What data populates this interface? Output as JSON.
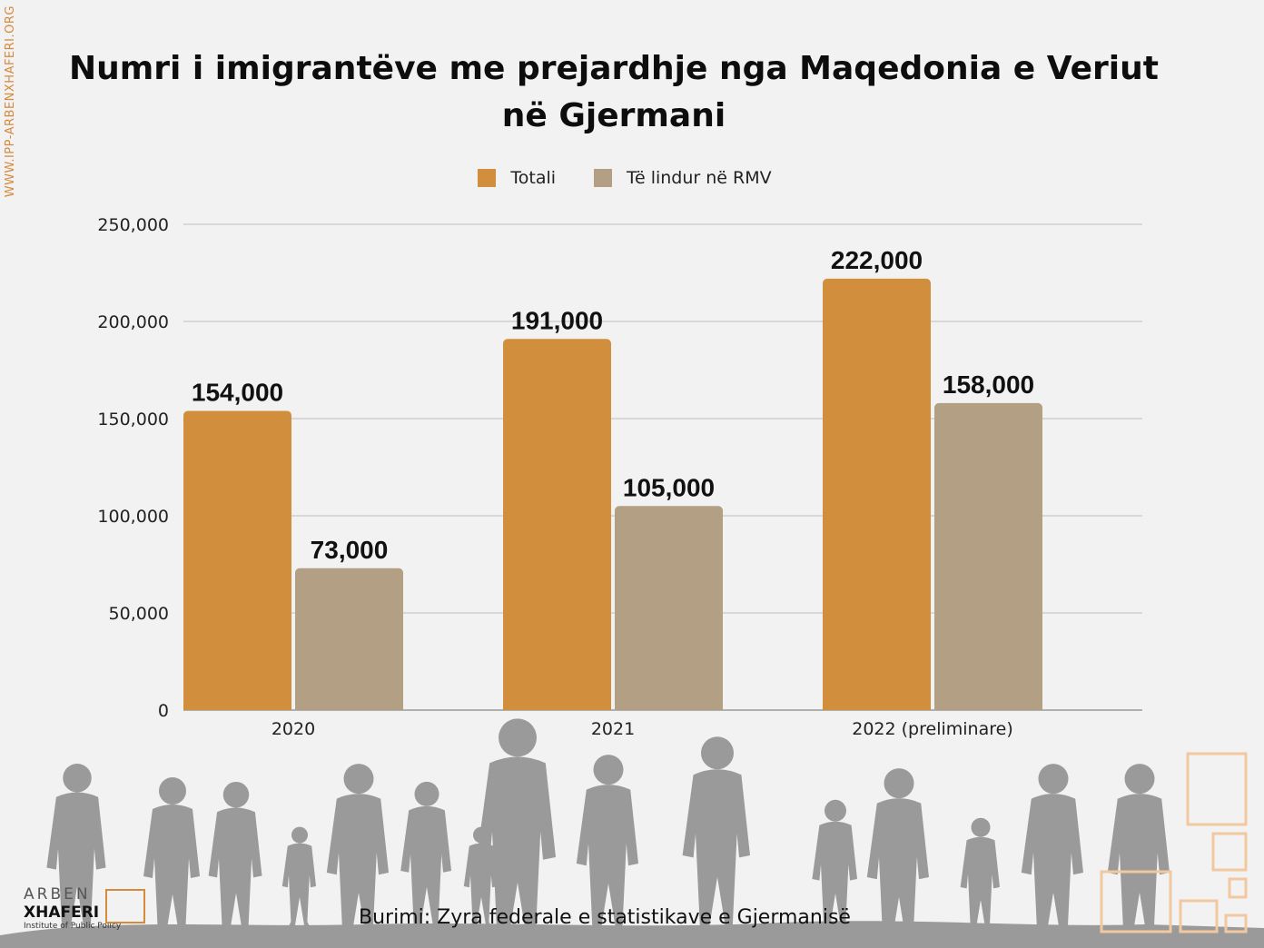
{
  "side_url": "WWW.IPP-ARBENXHAFERI.ORG",
  "source": "Burimi:  Zyra federale e statistikave e Gjermanisë",
  "logo": {
    "line1": "ARBEN",
    "line2": "XHAFERI",
    "line3": "Institute of Public Policy"
  },
  "colors": {
    "totali": "#d18f3e",
    "rmv": "#b29f84",
    "grid": "#c8c8c8"
  },
  "chart_data": {
    "type": "bar",
    "title": "Numri i imigrantëve me prejardhje nga Maqedonia e Veriut në Gjermani",
    "categories": [
      "2020",
      "2021",
      "2022 (preliminare)"
    ],
    "series": [
      {
        "name": "Totali",
        "values": [
          154000,
          191000,
          222000
        ],
        "labels": [
          "154,000",
          "191,000",
          "222,000"
        ]
      },
      {
        "name": "Të lindur në RMV",
        "values": [
          73000,
          105000,
          158000
        ],
        "labels": [
          "73,000",
          "105,000",
          "158,000"
        ]
      }
    ],
    "ylim": [
      0,
      250000
    ],
    "yticks": [
      0,
      50000,
      100000,
      150000,
      200000,
      250000
    ],
    "ytick_labels": [
      "0",
      "50,000",
      "100,000",
      "150,000",
      "200,000",
      "250,000"
    ],
    "xlabel": "",
    "ylabel": "",
    "grid": true,
    "legend": "top-center"
  }
}
